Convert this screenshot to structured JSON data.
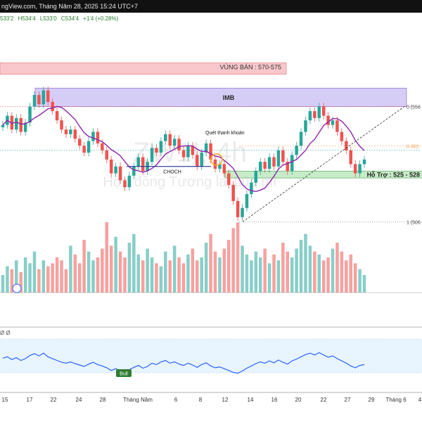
{
  "header": {
    "source_text": "ngView.com, Tháng Năm 28, 2025 15:24 UTC+7",
    "ohlc": [
      "533'2",
      "H534'4",
      "L533'0",
      "C534'4",
      "+1'4 (+0.28%)"
    ]
  },
  "watermark": {
    "symbol": "ZW1!, 4h",
    "subtitle": "Hợp đồng Tương lai Lúa mì"
  },
  "colors": {
    "up": "#26a69a",
    "down": "#ef5350",
    "ma": "#8e24aa",
    "rsi": "#2962ff",
    "sell_zone": "#f8c7cc",
    "imb_zone": "#d6cdf7",
    "support_zone": "#c8ecc9",
    "fib": "#f0a050"
  },
  "annotations": {
    "sell_zone": "VÙNG BÁN : 570-575",
    "imb": "IMB",
    "support": "Hỗ Trợ : 525 - 528",
    "liquidity_sweep": "Quét thanh khoản",
    "choch": "CHOCH",
    "bull": "Bull",
    "fib_0": "0 (556",
    "fib_0382": "0.382",
    "fib_1": "1 (506"
  },
  "rsi_tag": "Ø Ø",
  "chart_data": {
    "type": "candlestick",
    "x_ticks": [
      "15",
      "17",
      "22",
      "24",
      "28",
      "Tháng Năm",
      "6",
      "8",
      "12",
      "14",
      "16",
      "20",
      "22",
      "27",
      "29",
      "Tháng 6",
      "4"
    ],
    "price_range": [
      500,
      590
    ],
    "moving_average_color": "#8e24aa",
    "candles_approx_close": [
      548,
      552,
      546,
      551,
      545,
      549,
      556,
      561,
      557,
      563,
      558,
      554,
      550,
      546,
      544,
      546,
      542,
      539,
      536,
      541,
      545,
      540,
      537,
      533,
      527,
      530,
      524,
      521,
      526,
      530,
      534,
      528,
      532,
      538,
      536,
      541,
      544,
      539,
      542,
      537,
      534,
      539,
      535,
      530,
      536,
      540,
      533,
      529,
      531,
      527,
      522,
      515,
      508,
      512,
      518,
      523,
      528,
      532,
      529,
      534,
      530,
      537,
      532,
      528,
      535,
      539,
      545,
      550,
      554,
      551,
      556,
      552,
      548,
      550,
      545,
      541,
      537,
      531,
      527,
      531,
      533
    ],
    "rsi_range": [
      0,
      100
    ],
    "rsi_approx": [
      55,
      58,
      52,
      56,
      50,
      54,
      61,
      65,
      60,
      66,
      58,
      54,
      50,
      46,
      44,
      47,
      43,
      40,
      37,
      42,
      46,
      41,
      38,
      34,
      28,
      32,
      27,
      25,
      30,
      35,
      39,
      33,
      37,
      44,
      41,
      47,
      50,
      44,
      47,
      42,
      39,
      44,
      40,
      35,
      41,
      45,
      38,
      34,
      36,
      32,
      28,
      24,
      22,
      27,
      33,
      38,
      43,
      47,
      44,
      49,
      45,
      51,
      46,
      42,
      49,
      53,
      58,
      63,
      66,
      62,
      67,
      62,
      57,
      60,
      54,
      49,
      44,
      38,
      34,
      39,
      41
    ],
    "volume_approx": [
      30,
      45,
      40,
      55,
      35,
      60,
      50,
      70,
      40,
      55,
      45,
      50,
      60,
      55,
      40,
      80,
      65,
      50,
      90,
      70,
      55,
      60,
      75,
      120,
      80,
      95,
      70,
      60,
      85,
      100,
      65,
      55,
      75,
      60,
      50,
      45,
      70,
      55,
      80,
      60,
      50,
      65,
      75,
      55,
      60,
      85,
      100,
      70,
      60,
      75,
      90,
      110,
      120,
      80,
      65,
      55,
      70,
      60,
      75,
      50,
      65,
      55,
      85,
      70,
      60,
      75,
      90,
      100,
      80,
      70,
      65,
      55,
      60,
      75,
      85,
      70,
      55,
      65,
      50,
      40,
      30
    ]
  }
}
